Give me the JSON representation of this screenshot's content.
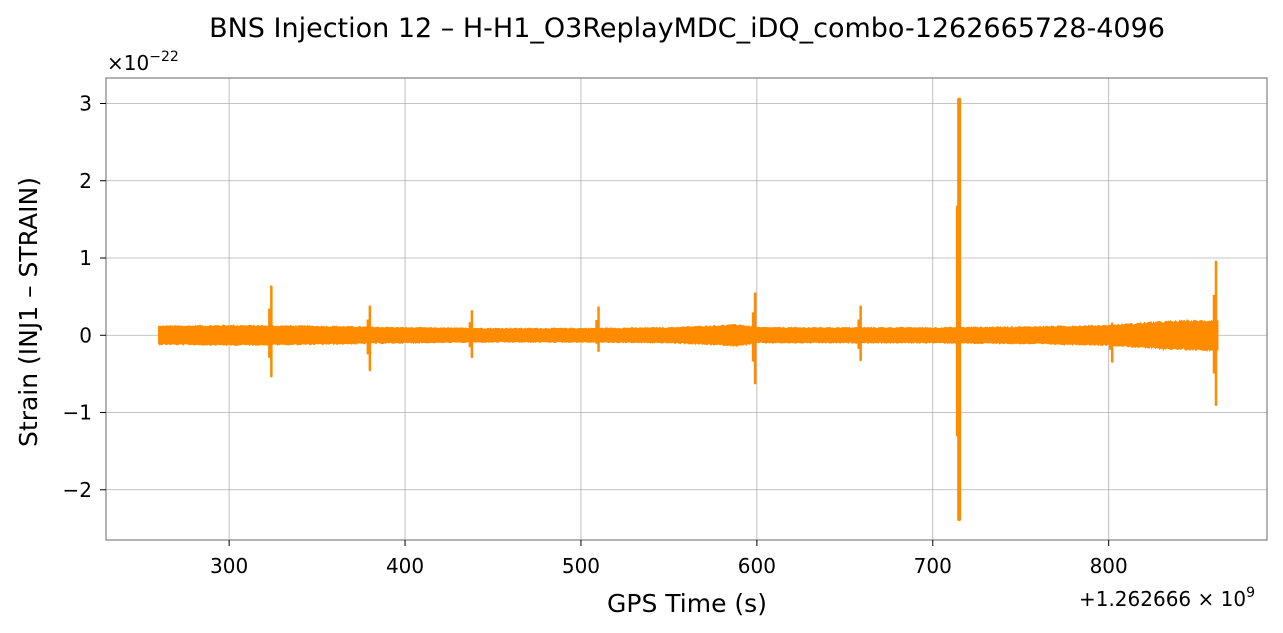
{
  "chart_data": {
    "type": "line",
    "title": "BNS Injection 12 – H-H1_O3ReplayMDC_iDQ_combo-1262665728-4096",
    "xlabel": "GPS Time (s)",
    "ylabel": "Strain (INJ1 – STRAIN)",
    "x_offset_label": "+1.262666 × 10",
    "x_offset_exponent": "9",
    "y_scale_label": "×10",
    "y_scale_exponent": "−22",
    "xlim": [
      230,
      890
    ],
    "ylim": [
      -2.65,
      3.33
    ],
    "x_ticks": [
      300,
      400,
      500,
      600,
      700,
      800
    ],
    "x_tick_labels": [
      "300",
      "400",
      "500",
      "600",
      "700",
      "800"
    ],
    "y_ticks": [
      -2,
      -1,
      0,
      1,
      2,
      3
    ],
    "y_tick_labels": [
      "−2",
      "−1",
      "0",
      "1",
      "2",
      "3"
    ],
    "grid": true,
    "line_color": "#ff8c00",
    "series": [
      {
        "x_start": 260,
        "x_end": 862,
        "noise_envelope": [
          [
            260,
            0.12
          ],
          [
            300,
            0.13
          ],
          [
            350,
            0.12
          ],
          [
            400,
            0.1
          ],
          [
            450,
            0.09
          ],
          [
            500,
            0.09
          ],
          [
            550,
            0.1
          ],
          [
            590,
            0.14
          ],
          [
            600,
            0.1
          ],
          [
            650,
            0.1
          ],
          [
            700,
            0.1
          ],
          [
            750,
            0.11
          ],
          [
            800,
            0.13
          ],
          [
            830,
            0.18
          ],
          [
            862,
            0.2
          ]
        ],
        "spikes": [
          {
            "x": 324,
            "max": 0.63,
            "min": -0.53
          },
          {
            "x": 380,
            "max": 0.37,
            "min": -0.45
          },
          {
            "x": 438,
            "max": 0.31,
            "min": -0.28
          },
          {
            "x": 510,
            "max": 0.36,
            "min": -0.2
          },
          {
            "x": 599,
            "max": 0.54,
            "min": -0.62
          },
          {
            "x": 659,
            "max": 0.37,
            "min": -0.32
          },
          {
            "x": 715,
            "max": 3.05,
            "min": -2.38
          },
          {
            "x": 802,
            "max": 0.15,
            "min": -0.34
          },
          {
            "x": 861,
            "max": 0.95,
            "min": -0.9
          }
        ]
      }
    ]
  }
}
